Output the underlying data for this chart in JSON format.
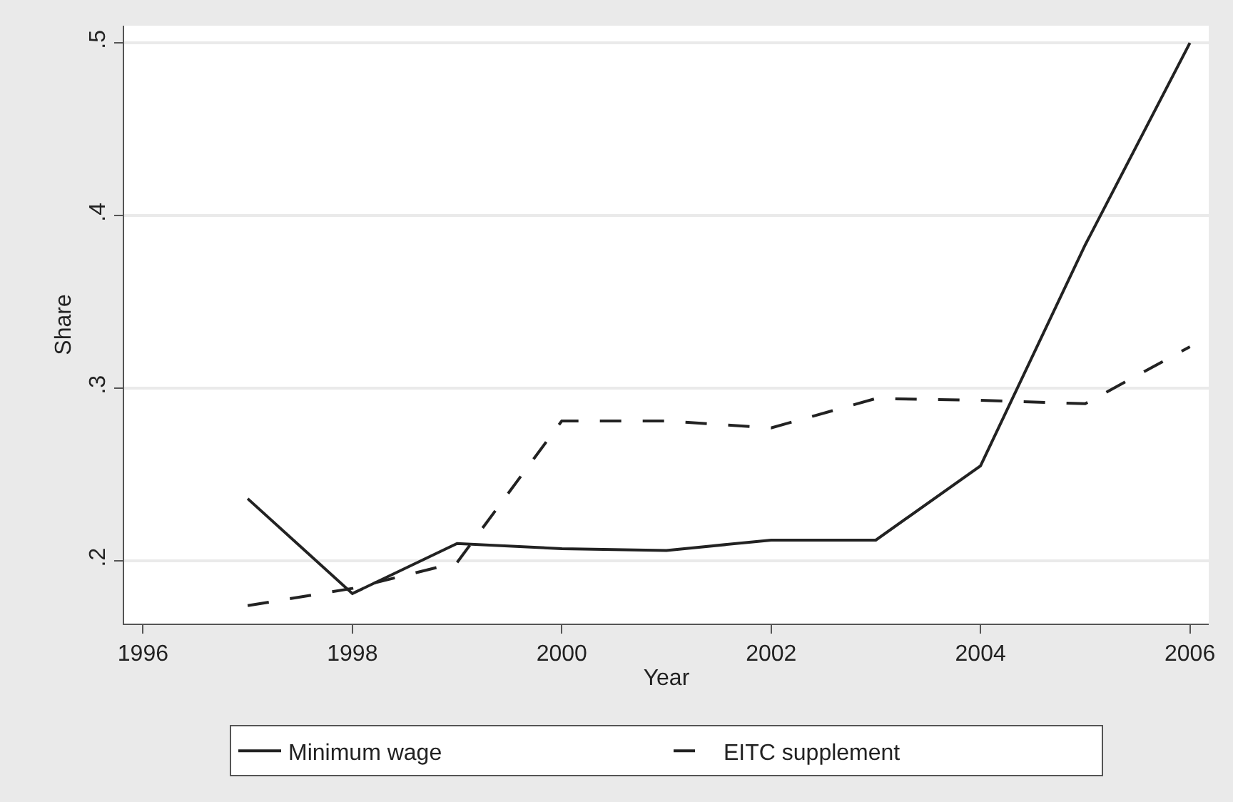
{
  "chart_data": {
    "type": "line",
    "xlabel": "Year",
    "ylabel": "Share",
    "x": [
      1997,
      1998,
      1999,
      2000,
      2001,
      2002,
      2003,
      2004,
      2005,
      2006
    ],
    "series": [
      {
        "name": "Minimum wage",
        "color": "#222222",
        "line_style": "solid",
        "values": [
          0.236,
          0.181,
          0.21,
          0.207,
          0.206,
          0.212,
          0.212,
          0.255,
          0.383,
          0.5
        ]
      },
      {
        "name": "EITC supplement",
        "color": "#222222",
        "line_style": "dashed",
        "values": [
          0.174,
          0.184,
          0.199,
          0.281,
          0.281,
          0.277,
          0.294,
          0.293,
          0.291,
          0.324
        ]
      }
    ],
    "xlim": [
      1995.82,
      2006.18
    ],
    "xticks": [
      1996,
      1998,
      2000,
      2002,
      2004,
      2006
    ],
    "ylim": [
      0.1636,
      0.51
    ],
    "yticks": [
      {
        "value": 0.2,
        "label": ".2"
      },
      {
        "value": 0.3,
        "label": ".3"
      },
      {
        "value": 0.4,
        "label": ".4"
      },
      {
        "value": 0.5,
        "label": ".5"
      }
    ],
    "grid": "y",
    "legend": "bottom",
    "marker": "none"
  }
}
